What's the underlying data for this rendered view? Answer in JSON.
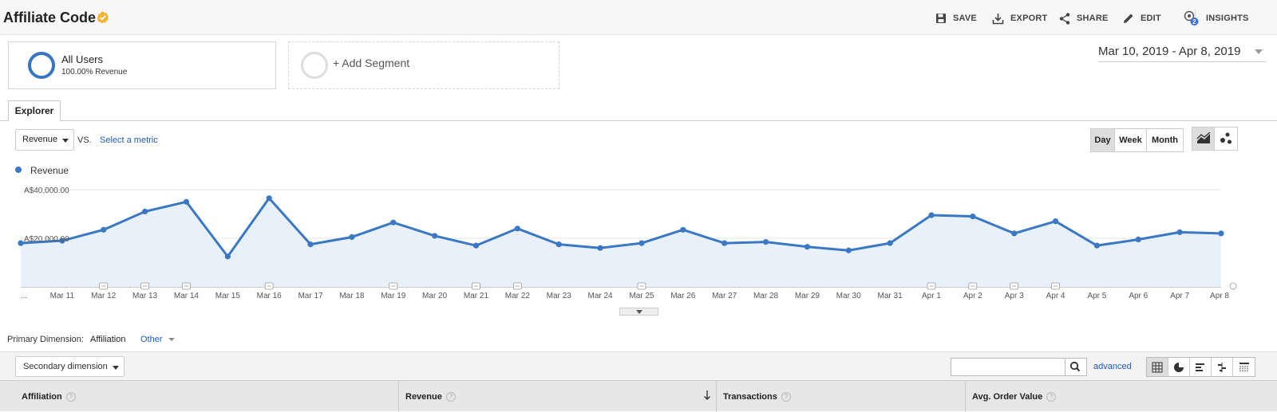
{
  "header": {
    "title": "Affiliate Code",
    "actions": [
      {
        "id": "save",
        "label": "SAVE",
        "icon": "floppy-icon"
      },
      {
        "id": "export",
        "label": "EXPORT",
        "icon": "download-icon"
      },
      {
        "id": "share",
        "label": "SHARE",
        "icon": "share-icon"
      },
      {
        "id": "edit",
        "label": "EDIT",
        "icon": "pencil-icon"
      },
      {
        "id": "insights",
        "label": "INSIGHTS",
        "icon": "insights-icon",
        "badge": "2"
      }
    ]
  },
  "segments": {
    "active": {
      "name": "All Users",
      "sub": "100.00% Revenue"
    },
    "add_label": "+ Add Segment"
  },
  "date_range": "Mar 10, 2019 - Apr 8, 2019",
  "tabs": {
    "explorer": "Explorer"
  },
  "metric_row": {
    "metric": "Revenue",
    "vs": "VS.",
    "select_metric": "Select a metric",
    "granularity": [
      "Day",
      "Week",
      "Month"
    ],
    "active_granularity": "Day"
  },
  "colors": {
    "series": "#3b78c3",
    "area": "#e8f0fa",
    "link": "#1f5bb8",
    "verified": "#f1b434"
  },
  "chart_data": {
    "type": "line",
    "legend": [
      "Revenue"
    ],
    "y_ticks": [
      "A$20,000.00",
      "A$40,000.00"
    ],
    "ylim": [
      0,
      40000
    ],
    "x_labels": [
      "...",
      "Mar 11",
      "Mar 12",
      "Mar 13",
      "Mar 14",
      "Mar 15",
      "Mar 16",
      "Mar 17",
      "Mar 18",
      "Mar 19",
      "Mar 20",
      "Mar 21",
      "Mar 22",
      "Mar 23",
      "Mar 24",
      "Mar 25",
      "Mar 26",
      "Mar 27",
      "Mar 28",
      "Mar 29",
      "Mar 30",
      "Mar 31",
      "Apr 1",
      "Apr 2",
      "Apr 3",
      "Apr 4",
      "Apr 5",
      "Apr 6",
      "Apr 7",
      "Apr 8"
    ],
    "series": [
      {
        "name": "Revenue",
        "values": [
          18000,
          19000,
          23500,
          31000,
          35000,
          12500,
          36500,
          17500,
          20500,
          26500,
          21000,
          17000,
          24000,
          17500,
          16000,
          18000,
          23500,
          18000,
          18500,
          16500,
          15000,
          18000,
          29500,
          29000,
          22000,
          27000,
          17000,
          19500,
          22500,
          22000
        ]
      }
    ],
    "annotation_dates": [
      "Mar 12",
      "Mar 13",
      "Mar 14",
      "Mar 16",
      "Mar 19",
      "Mar 21",
      "Mar 22",
      "Mar 25",
      "Apr 1",
      "Apr 2",
      "Apr 3",
      "Apr 4"
    ]
  },
  "dimension": {
    "label": "Primary Dimension:",
    "value": "Affiliation",
    "other": "Other"
  },
  "table": {
    "secondary_dimension": "Secondary dimension",
    "search_placeholder": "",
    "advanced": "advanced",
    "columns": [
      "Affiliation",
      "Revenue",
      "Transactions",
      "Avg. Order Value"
    ]
  }
}
